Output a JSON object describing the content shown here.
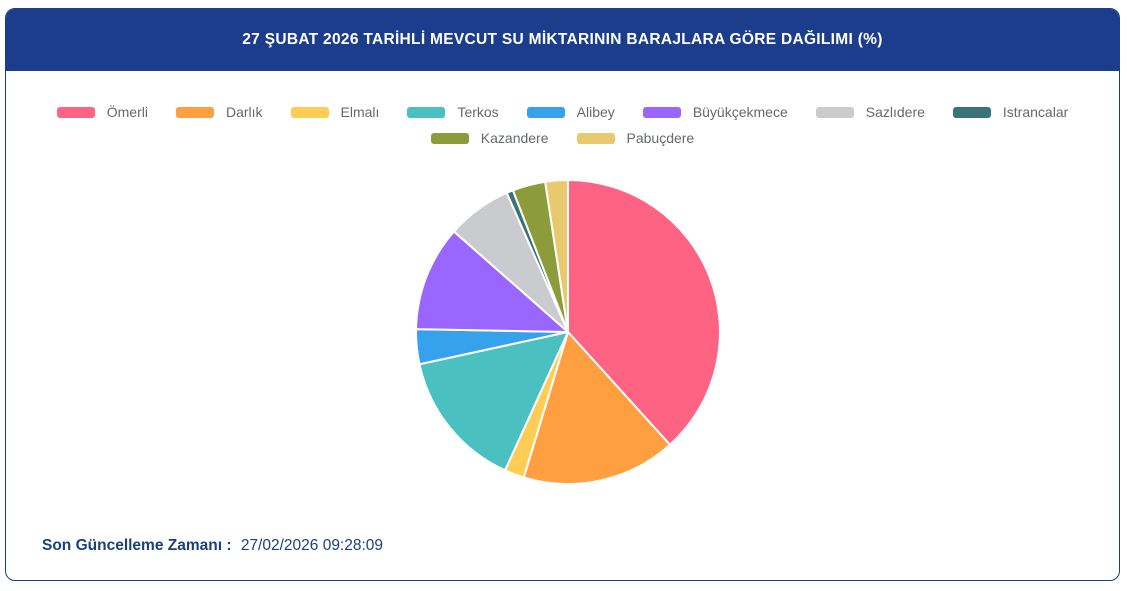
{
  "header": {
    "title": "27 ŞUBAT 2026 TARİHLİ MEVCUT SU MİKTARININ BARAJLARA GÖRE DAĞILIMI (%)",
    "background_color": "#1C3D8B",
    "text_color": "#FFFFFF"
  },
  "footer": {
    "label": "Son Güncelleme Zamanı :",
    "value": "27/02/2026 09:28:09",
    "text_color": "#1C3F7D"
  },
  "chart_data": {
    "type": "pie",
    "title": "27 ŞUBAT 2026 TARİHLİ MEVCUT SU MİKTARININ BARAJLARA GÖRE DAĞILIMI (%)",
    "unit": "%",
    "start_angle_deg": 0,
    "direction": "clockwise",
    "legend_position": "top",
    "legend_rows": [
      8,
      2
    ],
    "slice_border_color": "#FFFFFF",
    "series": [
      {
        "id": "omerli",
        "name": "Ömerli",
        "value": 38.3,
        "color": "#FF6384"
      },
      {
        "id": "darlik",
        "name": "Darlık",
        "value": 16.4,
        "color": "#FF9F40"
      },
      {
        "id": "elmali",
        "name": "Elmalı",
        "value": 2.1,
        "color": "#FFCD56"
      },
      {
        "id": "terkos",
        "name": "Terkos",
        "value": 14.8,
        "color": "#4BC0C0"
      },
      {
        "id": "alibey",
        "name": "Alibey",
        "value": 3.7,
        "color": "#36A2EB"
      },
      {
        "id": "buyukcekmece",
        "name": "Büyükçekmece",
        "value": 11.2,
        "color": "#9966FF"
      },
      {
        "id": "sazlidere",
        "name": "Sazlıdere",
        "value": 6.9,
        "color": "#C9CBCF"
      },
      {
        "id": "istrancalar",
        "name": "Istrancalar",
        "value": 0.7,
        "color": "#3A7378"
      },
      {
        "id": "kazandere",
        "name": "Kazandere",
        "value": 3.5,
        "color": "#8D9C3A"
      },
      {
        "id": "pabucdere",
        "name": "Pabuçdere",
        "value": 2.4,
        "color": "#E8C96D"
      }
    ]
  }
}
